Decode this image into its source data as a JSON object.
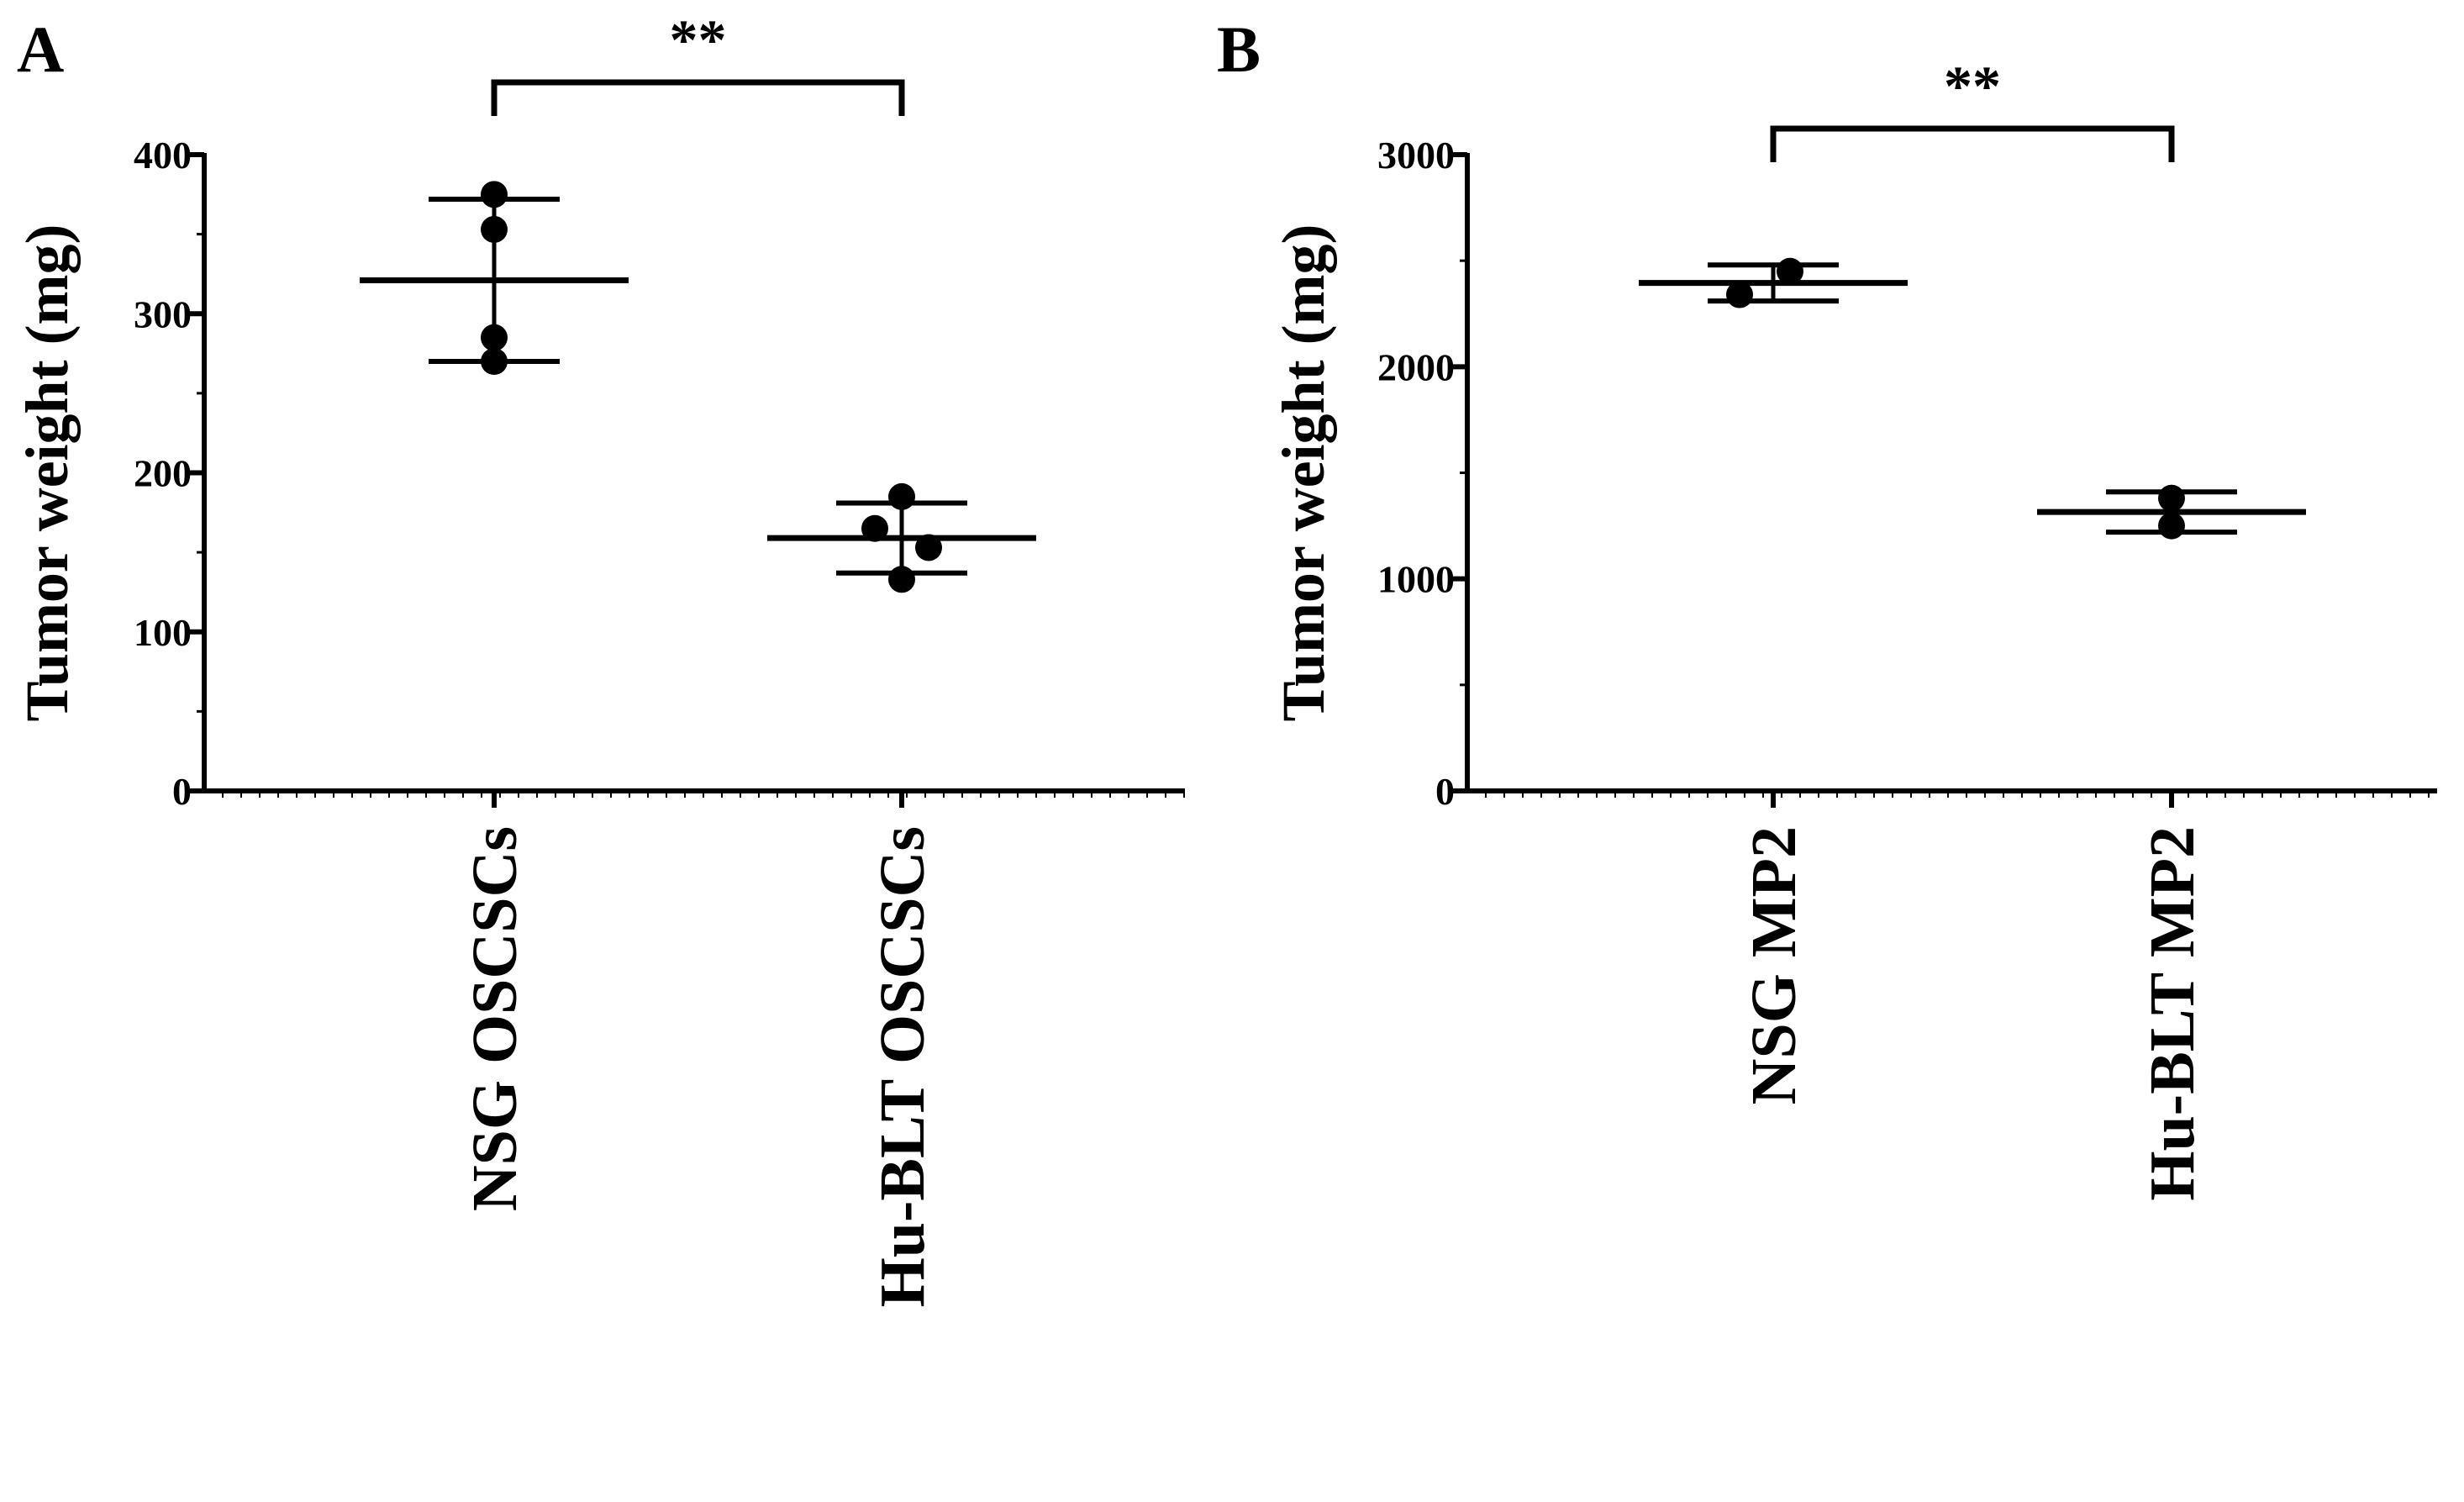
{
  "panels": [
    {
      "label": "A"
    },
    {
      "label": "B"
    }
  ],
  "chart_data": [
    {
      "type": "scatter",
      "panel": "A",
      "ylabel": "Tumor weight (mg)",
      "xlabel": "",
      "ylim": [
        0,
        400
      ],
      "yticks": [
        "0",
        "100",
        "200",
        "300",
        "400"
      ],
      "categories": [
        "NSG OSCSCs",
        "Hu-BLT OSCSCs"
      ],
      "series": [
        {
          "values": [
            [
              375,
              353,
              285,
              270
            ],
            [
              185,
              165,
              153,
              133
            ]
          ]
        }
      ],
      "summary": [
        {
          "category": "NSG OSCSCs",
          "mean": 321,
          "error": 51
        },
        {
          "category": "Hu-BLT OSCSCs",
          "mean": 159,
          "error": 22
        }
      ],
      "significance": {
        "text": "**",
        "from": "NSG OSCSCs",
        "to": "Hu-BLT OSCSCs"
      }
    },
    {
      "type": "scatter",
      "panel": "B",
      "ylabel": "Tumor weight (mg)",
      "xlabel": "",
      "ylim": [
        0,
        3000
      ],
      "yticks": [
        "0",
        "1000",
        "2000",
        "3000"
      ],
      "categories": [
        "NSG MP2",
        "Hu-BLT MP2"
      ],
      "series": [
        {
          "values": [
            [
              2450,
              2340
            ],
            [
              1380,
              1250
            ]
          ]
        }
      ],
      "summary": [
        {
          "category": "NSG MP2",
          "mean": 2395,
          "error": 85
        },
        {
          "category": "Hu-BLT MP2",
          "mean": 1315,
          "error": 95
        }
      ],
      "significance": {
        "text": "**",
        "from": "NSG MP2",
        "to": "Hu-BLT MP2"
      }
    }
  ]
}
